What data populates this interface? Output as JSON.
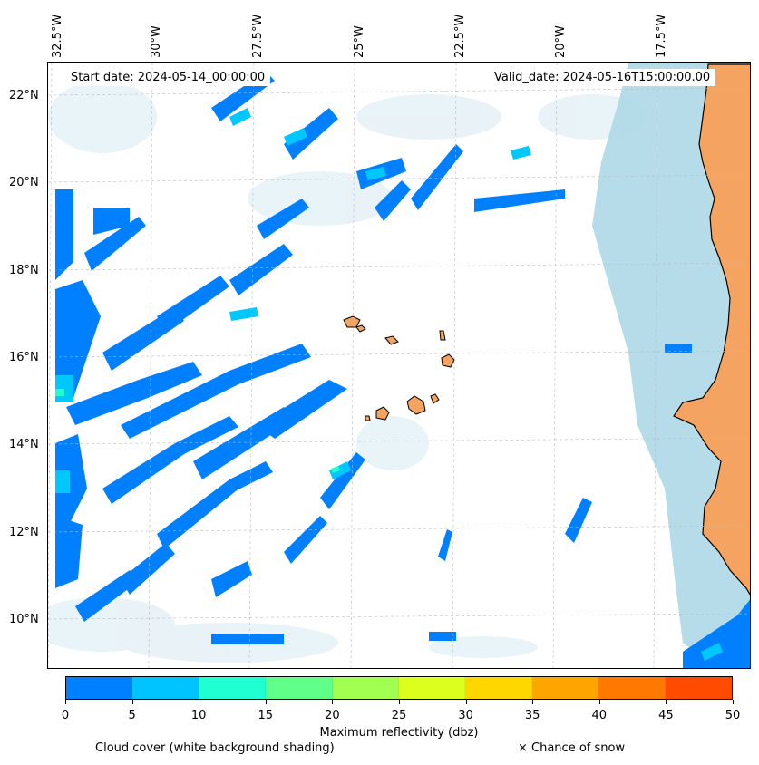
{
  "map": {
    "start_date": "Start date: 2024-05-14_00:00:00",
    "valid_date": "Valid_date: 2024-05-16T15:00:00.00",
    "longitude_labels": [
      "32.5°W",
      "30°W",
      "27.5°W",
      "25°W",
      "22.5°W",
      "20°W",
      "17.5°W"
    ],
    "latitude_labels": [
      "22°N",
      "20°N",
      "18°N",
      "16°N",
      "14°N",
      "12°N",
      "10°N"
    ],
    "colors": {
      "land": "#f4a460",
      "coast_cloud": "#add8e6",
      "refl_0_10": "#0080ff",
      "refl_10_15": "#00c8ff",
      "refl_15_20": "#20ffd0"
    }
  },
  "colorbar": {
    "title": "Maximum reflectivity (dbz)",
    "ticks": [
      "0",
      "5",
      "10",
      "15",
      "20",
      "25",
      "30",
      "35",
      "40",
      "45",
      "50"
    ],
    "colors": [
      "#0080ff",
      "#00c4ff",
      "#20ffd2",
      "#60ff8a",
      "#a0ff50",
      "#dcff1e",
      "#ffd700",
      "#ffa500",
      "#ff7800",
      "#ff4b00"
    ]
  },
  "footer": {
    "cloud_cover_note": "Cloud cover (white background shading)",
    "snow_note": "× Chance of snow"
  }
}
